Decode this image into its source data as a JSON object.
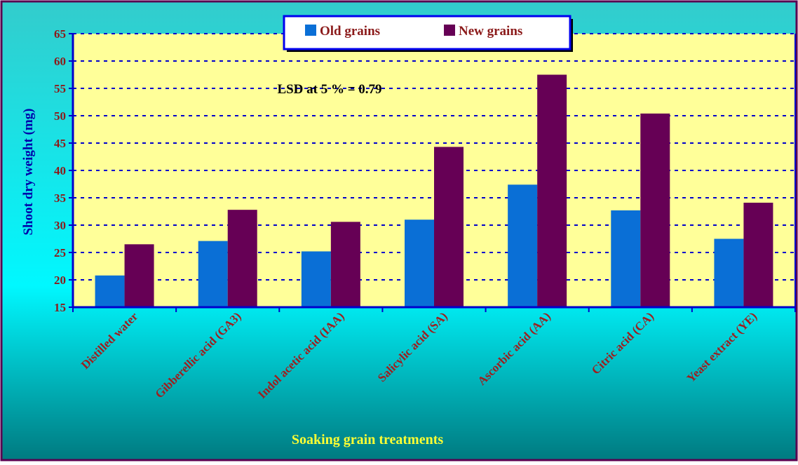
{
  "chart_data": {
    "type": "bar",
    "title": "",
    "xlabel": "Soaking grain treatments",
    "ylabel": "Shoot dry weight (mg)",
    "ylim": [
      15,
      65
    ],
    "yticks": [
      15,
      20,
      25,
      30,
      35,
      40,
      45,
      50,
      55,
      60,
      65
    ],
    "grid": true,
    "legend_position": "top-center",
    "annotation": "LSD at 5 % = 0.79",
    "categories": [
      "Distilled water",
      "Gibberellic acid (GA3)",
      "Indol acetic acid (IAA)",
      "Salicylic acid (SA)",
      "Ascorbic acid (AA)",
      "Citric acid (CA)",
      "Yeast extract (YE)"
    ],
    "series": [
      {
        "name": "Old grains",
        "color": "#0a6fd6",
        "values": [
          20.8,
          27.1,
          25.2,
          31.0,
          37.4,
          32.7,
          27.5
        ]
      },
      {
        "name": "New grains",
        "color": "#660055",
        "values": [
          26.5,
          32.8,
          30.6,
          44.3,
          57.5,
          50.4,
          34.1
        ]
      }
    ]
  },
  "colors": {
    "frame_border": "#5a0050",
    "plot_background": "#ffff99",
    "grid_line": "#0000cc",
    "axis": "#0000cc",
    "tick_label": "#8b1a1a",
    "category_label": "#9e1e1e",
    "xlabel": "#ffff33",
    "ylabel": "#0000aa",
    "legend_border": "#0000ee",
    "legend_text": "#8b1a1a"
  }
}
